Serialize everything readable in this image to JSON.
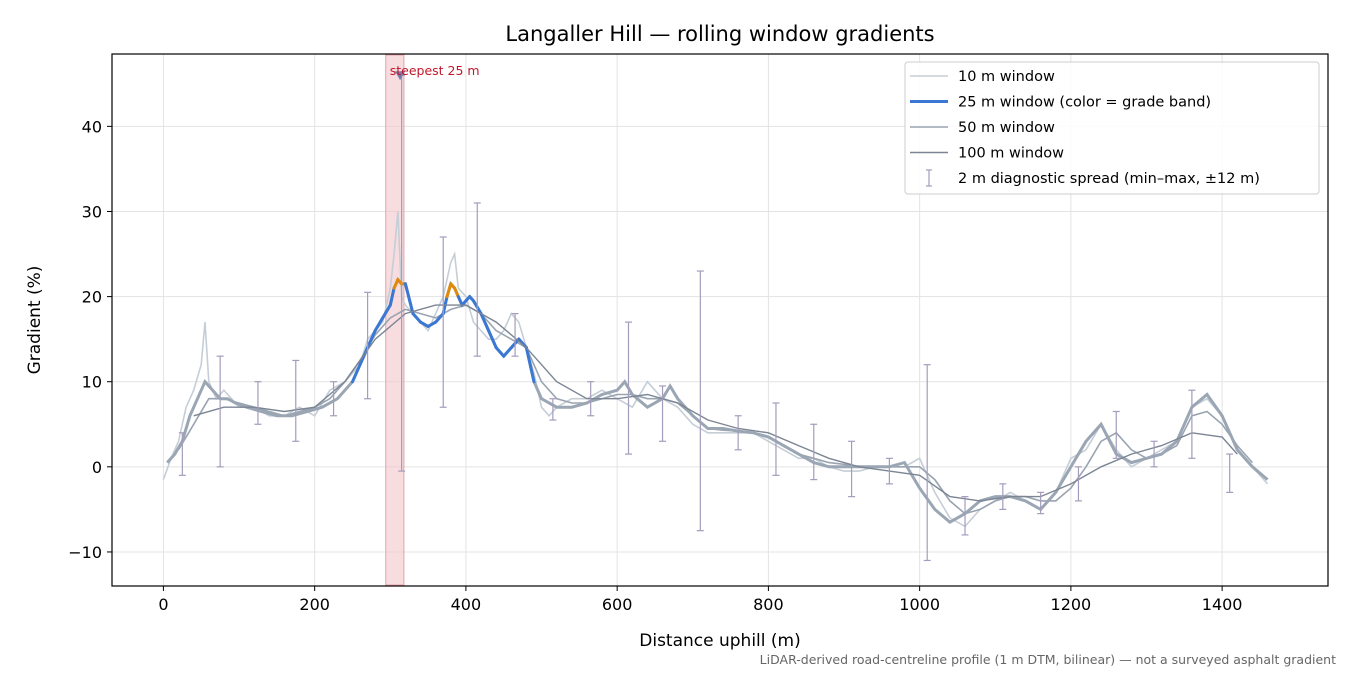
{
  "chart_data": {
    "type": "line",
    "title": "Langaller Hill — rolling window gradients",
    "xlabel": "Distance uphill (m)",
    "ylabel": "Gradient (%)",
    "xlim": [
      -68,
      1540
    ],
    "ylim": [
      -14,
      48.5
    ],
    "xticks": [
      0,
      200,
      400,
      600,
      800,
      1000,
      1200,
      1400
    ],
    "yticks": [
      -10,
      0,
      10,
      20,
      30,
      40
    ],
    "xtick_labels": [
      "0",
      "200",
      "400",
      "600",
      "800",
      "1000",
      "1200",
      "1400"
    ],
    "ytick_labels": [
      "−10",
      "0",
      "10",
      "20",
      "30",
      "40"
    ],
    "grid": true,
    "legend_position": "top-right",
    "colors": {
      "w10": "#c5ced6",
      "w25_base": "#9aa6b3",
      "w25_band_blue": "#3a78d4",
      "w25_band_orange": "#e08a0c",
      "w50": "#9aa4b1",
      "w100": "#7c8594",
      "errorbar": "#a49cbc",
      "highlight": "#f4c7cb",
      "steepest": "#c0182a"
    },
    "highlight_band": {
      "x_start": 294,
      "x_end": 318
    },
    "annotation": {
      "text": "steepest 25 m",
      "x": 313,
      "y": 46
    },
    "footnote": "LiDAR-derived road-centreline profile (1 m DTM, bilinear) — not a surveyed asphalt gradient",
    "band_thresholds": [
      10,
      20
    ],
    "series": [
      {
        "name": "10 m window",
        "x": [
          0,
          10,
          20,
          30,
          40,
          50,
          55,
          60,
          70,
          80,
          90,
          100,
          120,
          140,
          160,
          180,
          200,
          220,
          240,
          260,
          270,
          280,
          290,
          300,
          305,
          310,
          315,
          320,
          330,
          340,
          350,
          360,
          370,
          380,
          385,
          390,
          400,
          410,
          420,
          430,
          440,
          450,
          460,
          470,
          480,
          490,
          500,
          510,
          520,
          540,
          560,
          580,
          600,
          620,
          640,
          660,
          680,
          700,
          720,
          740,
          760,
          780,
          800,
          820,
          840,
          860,
          880,
          900,
          920,
          940,
          960,
          980,
          1000,
          1020,
          1040,
          1060,
          1080,
          1100,
          1120,
          1140,
          1160,
          1180,
          1200,
          1220,
          1240,
          1260,
          1280,
          1300,
          1320,
          1340,
          1360,
          1380,
          1400,
          1420,
          1440,
          1460
        ],
        "y": [
          -1.5,
          1,
          3,
          7,
          9,
          12,
          17,
          10,
          8,
          9,
          8,
          7,
          7,
          6,
          6,
          7,
          6,
          9,
          10,
          12,
          15,
          16,
          17,
          21,
          25,
          30,
          20,
          19,
          18,
          17,
          16,
          18,
          20,
          24,
          25,
          21,
          20,
          17,
          16,
          15,
          15,
          16,
          18,
          17,
          14,
          11,
          7,
          6,
          7,
          8,
          8,
          9,
          8,
          7,
          10,
          8,
          7,
          5,
          4,
          4,
          4,
          4,
          3,
          2,
          1,
          1,
          0,
          -0.5,
          -0.5,
          0,
          0,
          0,
          1,
          -3,
          -6,
          -7,
          -5,
          -4,
          -3,
          -4,
          -5,
          -3,
          1,
          2,
          5,
          2,
          0,
          1,
          2,
          3,
          7,
          8,
          6,
          2,
          0,
          -2
        ]
      },
      {
        "name": "25 m window (color = grade band)",
        "x": [
          5,
          15,
          25,
          35,
          45,
          55,
          65,
          75,
          85,
          95,
          110,
          130,
          150,
          170,
          190,
          210,
          230,
          250,
          260,
          270,
          280,
          290,
          300,
          305,
          310,
          315,
          320,
          330,
          340,
          350,
          360,
          370,
          375,
          380,
          385,
          390,
          395,
          400,
          405,
          410,
          420,
          430,
          440,
          450,
          460,
          470,
          480,
          490,
          500,
          520,
          540,
          560,
          580,
          600,
          610,
          620,
          640,
          660,
          670,
          680,
          700,
          720,
          740,
          760,
          780,
          800,
          820,
          840,
          860,
          880,
          900,
          920,
          940,
          960,
          980,
          1000,
          1020,
          1040,
          1060,
          1080,
          1100,
          1120,
          1140,
          1160,
          1180,
          1200,
          1220,
          1240,
          1260,
          1280,
          1300,
          1320,
          1340,
          1360,
          1380,
          1400,
          1420,
          1440,
          1460
        ],
        "y": [
          0.5,
          1.5,
          3,
          6,
          8,
          10,
          9,
          8,
          8,
          7.5,
          7,
          6.5,
          6,
          6,
          6.5,
          7,
          8,
          10,
          12,
          14,
          16,
          17.5,
          19,
          21,
          22,
          21.5,
          21.5,
          18,
          17,
          16.5,
          17,
          18,
          20,
          21.5,
          21,
          20,
          19,
          19.5,
          20,
          19.5,
          18,
          16,
          14,
          13,
          14,
          15,
          14,
          10,
          8,
          7,
          7,
          7.5,
          8.5,
          9,
          10,
          8.5,
          7,
          8,
          9.5,
          8,
          6,
          4.5,
          4.5,
          4.2,
          4,
          3.5,
          2.5,
          1.5,
          0.5,
          0,
          0,
          0,
          0,
          0,
          0.5,
          -2.5,
          -5,
          -6.5,
          -5.5,
          -4,
          -3.5,
          -3.5,
          -4,
          -5,
          -3,
          0,
          3,
          5,
          1.5,
          0.5,
          1,
          1.5,
          3,
          7,
          8.5,
          6,
          2,
          0,
          -1.5
        ]
      },
      {
        "name": "50 m window",
        "x": [
          20,
          40,
          60,
          80,
          100,
          120,
          140,
          160,
          180,
          200,
          220,
          240,
          260,
          280,
          300,
          320,
          340,
          360,
          380,
          400,
          420,
          440,
          460,
          480,
          500,
          520,
          540,
          560,
          580,
          600,
          620,
          640,
          660,
          680,
          700,
          720,
          740,
          760,
          780,
          800,
          820,
          840,
          860,
          880,
          900,
          920,
          940,
          960,
          980,
          1000,
          1020,
          1040,
          1060,
          1080,
          1100,
          1120,
          1140,
          1160,
          1180,
          1200,
          1220,
          1240,
          1260,
          1280,
          1300,
          1320,
          1340,
          1360,
          1380,
          1400,
          1420,
          1440
        ],
        "y": [
          2,
          5,
          8,
          8,
          7.5,
          7,
          6.5,
          6,
          6.5,
          7,
          8,
          10,
          12.5,
          15.5,
          17.5,
          18.5,
          18,
          17.5,
          18.5,
          19,
          18,
          16,
          15,
          14,
          10,
          8,
          7.5,
          7.5,
          8,
          8.5,
          8.5,
          8,
          8,
          7.5,
          6,
          4.5,
          4.3,
          4.2,
          4,
          3.5,
          2.5,
          1.5,
          1,
          0.5,
          0.3,
          0,
          0,
          0,
          0,
          0,
          -1.5,
          -4,
          -5.5,
          -5,
          -4,
          -3.5,
          -3.5,
          -4,
          -4,
          -2.5,
          0,
          3,
          4,
          2,
          1,
          1.5,
          2.5,
          6,
          6.5,
          5,
          2.5,
          0.5
        ]
      },
      {
        "name": "100 m window",
        "x": [
          40,
          80,
          120,
          160,
          200,
          240,
          280,
          320,
          360,
          400,
          440,
          480,
          520,
          560,
          600,
          640,
          680,
          720,
          760,
          800,
          840,
          880,
          920,
          960,
          1000,
          1040,
          1080,
          1120,
          1160,
          1200,
          1240,
          1280,
          1320,
          1360,
          1400,
          1420
        ],
        "y": [
          6,
          7,
          7,
          6.5,
          7,
          10,
          15,
          18,
          19,
          19,
          17,
          14,
          10,
          8,
          8,
          8.5,
          7.5,
          5.5,
          4.5,
          4,
          2.5,
          1,
          0,
          -0.5,
          -1,
          -3.5,
          -4,
          -3.5,
          -3.5,
          -2,
          0,
          1.5,
          2.5,
          4,
          3.5,
          1.5
        ]
      }
    ],
    "errorbars": {
      "name": "2 m diagnostic spread (min–max, ±12 m)",
      "points": [
        {
          "x": 25,
          "y": 2,
          "lo": -1,
          "hi": 4
        },
        {
          "x": 75,
          "y": 8,
          "lo": 0,
          "hi": 13
        },
        {
          "x": 125,
          "y": 7,
          "lo": 5,
          "hi": 10
        },
        {
          "x": 175,
          "y": 6,
          "lo": 3,
          "hi": 12.5
        },
        {
          "x": 225,
          "y": 8,
          "lo": 6,
          "hi": 10
        },
        {
          "x": 270,
          "y": 14,
          "lo": 8,
          "hi": 20.5
        },
        {
          "x": 315,
          "y": 22,
          "lo": -0.5,
          "hi": 46
        },
        {
          "x": 370,
          "y": 18,
          "lo": 7,
          "hi": 27
        },
        {
          "x": 415,
          "y": 20,
          "lo": 13,
          "hi": 31
        },
        {
          "x": 465,
          "y": 15,
          "lo": 13,
          "hi": 18
        },
        {
          "x": 515,
          "y": 7,
          "lo": 5.5,
          "hi": 8
        },
        {
          "x": 565,
          "y": 8,
          "lo": 6,
          "hi": 10
        },
        {
          "x": 615,
          "y": 9,
          "lo": 1.5,
          "hi": 17
        },
        {
          "x": 660,
          "y": 8,
          "lo": 3,
          "hi": 9.5
        },
        {
          "x": 710,
          "y": 6,
          "lo": -7.5,
          "hi": 23
        },
        {
          "x": 760,
          "y": 4.5,
          "lo": 2,
          "hi": 6
        },
        {
          "x": 810,
          "y": 4,
          "lo": -1,
          "hi": 7.5
        },
        {
          "x": 860,
          "y": 2,
          "lo": -1.5,
          "hi": 5
        },
        {
          "x": 910,
          "y": 0.5,
          "lo": -3.5,
          "hi": 3
        },
        {
          "x": 960,
          "y": 0,
          "lo": -2,
          "hi": 1
        },
        {
          "x": 1010,
          "y": 0,
          "lo": -11,
          "hi": 12
        },
        {
          "x": 1060,
          "y": -5,
          "lo": -8,
          "hi": -3.5
        },
        {
          "x": 1110,
          "y": -3.5,
          "lo": -5,
          "hi": -2
        },
        {
          "x": 1160,
          "y": -4,
          "lo": -5.5,
          "hi": -3
        },
        {
          "x": 1210,
          "y": -1,
          "lo": -4,
          "hi": 0
        },
        {
          "x": 1260,
          "y": 4,
          "lo": 1,
          "hi": 6.5
        },
        {
          "x": 1310,
          "y": 1.5,
          "lo": 0,
          "hi": 3
        },
        {
          "x": 1360,
          "y": 7,
          "lo": 1,
          "hi": 9
        },
        {
          "x": 1410,
          "y": 0.5,
          "lo": -3,
          "hi": 1.5
        }
      ]
    }
  }
}
